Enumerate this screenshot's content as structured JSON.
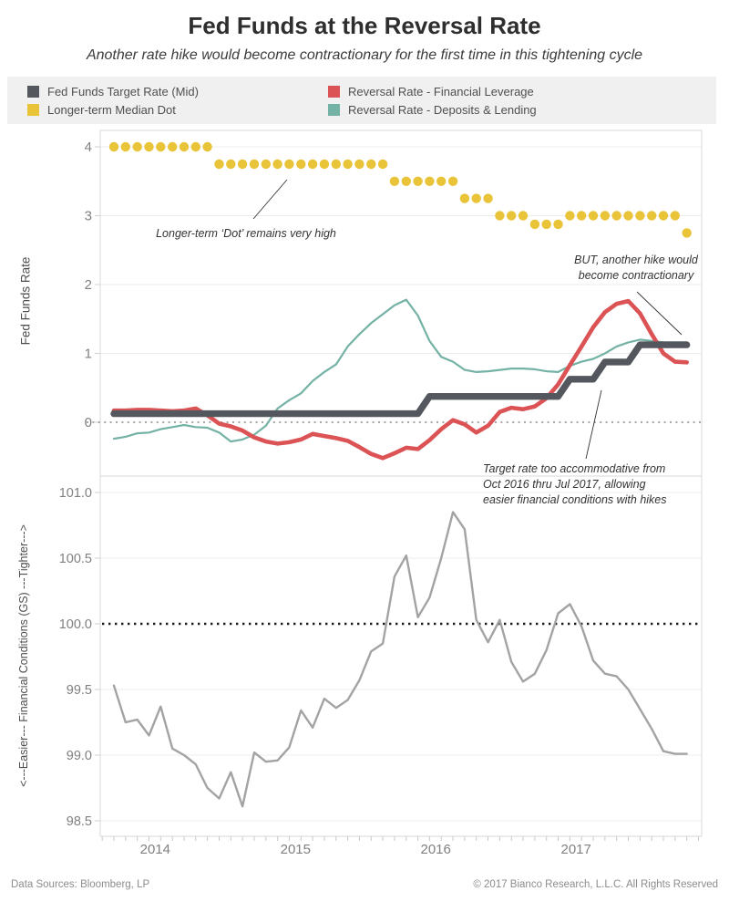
{
  "title": "Fed Funds at the Reversal Rate",
  "subtitle": "Another rate hike would become contractionary for the first time in this tightening cycle",
  "legend": {
    "items": [
      {
        "label": "Fed Funds Target Rate (Mid)",
        "color": "#54575e"
      },
      {
        "label": "Longer-term Median Dot",
        "color": "#e9c338"
      },
      {
        "label": "Reversal Rate - Financial Leverage",
        "color": "#dc5356"
      },
      {
        "label": "Reversal Rate - Deposits & Lending",
        "color": "#74b2a6"
      }
    ]
  },
  "annotations": {
    "dot_note": {
      "lines": [
        "Longer-term ‘Dot’ remains very high"
      ]
    },
    "hike_note": {
      "lines": [
        "BUT, another hike would",
        "become contractionary"
      ]
    },
    "target_note": {
      "lines": [
        "Target rate too accommodative from",
        "Oct 2016 thru Jul 2017, allowing",
        "easier financial conditions with hikes"
      ]
    }
  },
  "footer": {
    "left": "Data Sources: Bloomberg, LP",
    "right": "© 2017 Bianco Research, L.L.C. All Rights Reserved"
  },
  "chart_data": {
    "type": "line",
    "x_unit": "month",
    "x_start": "2013-09",
    "x_axis": {
      "year_ticks": [
        {
          "label": "2014",
          "month_index": 4
        },
        {
          "label": "2015",
          "month_index": 16
        },
        {
          "label": "2016",
          "month_index": 28
        },
        {
          "label": "2017",
          "month_index": 40
        }
      ]
    },
    "top_panel": {
      "ylabel": "Fed Funds Rate",
      "ylim": [
        -0.8,
        4.35
      ],
      "yticks": [
        {
          "v": 4,
          "label": "4"
        },
        {
          "v": 3,
          "label": "3"
        },
        {
          "v": 2,
          "label": "2"
        },
        {
          "v": 1,
          "label": "1"
        },
        {
          "v": 0,
          "label": "0"
        }
      ],
      "zero_reference_line": 0,
      "dots_series": {
        "name": "Longer-term Median Dot",
        "color": "#e9c338",
        "values": [
          4,
          4,
          4,
          4,
          4,
          4,
          4,
          4,
          4,
          3.75,
          3.75,
          3.75,
          3.75,
          3.75,
          3.75,
          3.75,
          3.75,
          3.75,
          3.75,
          3.75,
          3.75,
          3.75,
          3.75,
          3.75,
          3.5,
          3.5,
          3.5,
          3.5,
          3.5,
          3.5,
          3.25,
          3.25,
          3.25,
          3,
          3,
          3,
          2.875,
          2.875,
          2.875,
          3,
          3,
          3,
          3,
          3,
          3,
          3,
          3,
          3,
          3,
          2.75
        ]
      },
      "series": [
        {
          "name": "Fed Funds Target Rate (Mid)",
          "color": "#54575e",
          "width": 7.4,
          "values": [
            0.125,
            0.125,
            0.125,
            0.125,
            0.125,
            0.125,
            0.125,
            0.125,
            0.125,
            0.125,
            0.125,
            0.125,
            0.125,
            0.125,
            0.125,
            0.125,
            0.125,
            0.125,
            0.125,
            0.125,
            0.125,
            0.125,
            0.125,
            0.125,
            0.125,
            0.125,
            0.125,
            0.375,
            0.375,
            0.375,
            0.375,
            0.375,
            0.375,
            0.375,
            0.375,
            0.375,
            0.375,
            0.375,
            0.375,
            0.625,
            0.625,
            0.625,
            0.875,
            0.875,
            0.875,
            1.125,
            1.125,
            1.125,
            1.125,
            1.125
          ]
        },
        {
          "name": "Reversal Rate - Financial Leverage",
          "color": "#dc5356",
          "width": 4.6,
          "values": [
            0.17,
            0.17,
            0.18,
            0.18,
            0.17,
            0.16,
            0.17,
            0.2,
            0.1,
            -0.02,
            -0.06,
            -0.12,
            -0.22,
            -0.28,
            -0.31,
            -0.29,
            -0.25,
            -0.17,
            -0.2,
            -0.23,
            -0.27,
            -0.36,
            -0.46,
            -0.52,
            -0.45,
            -0.37,
            -0.39,
            -0.26,
            -0.1,
            0.03,
            -0.03,
            -0.15,
            -0.05,
            0.15,
            0.21,
            0.19,
            0.23,
            0.35,
            0.55,
            0.83,
            1.1,
            1.38,
            1.6,
            1.72,
            1.76,
            1.58,
            1.28,
            1.0,
            0.88,
            0.87
          ]
        },
        {
          "name": "Reversal Rate - Deposits & Lending",
          "color": "#74b2a6",
          "width": 2.2,
          "values": [
            -0.24,
            -0.21,
            -0.16,
            -0.15,
            -0.1,
            -0.07,
            -0.04,
            -0.07,
            -0.08,
            -0.15,
            -0.28,
            -0.25,
            -0.18,
            -0.05,
            0.2,
            0.32,
            0.42,
            0.6,
            0.73,
            0.84,
            1.1,
            1.28,
            1.44,
            1.57,
            1.7,
            1.78,
            1.55,
            1.18,
            0.95,
            0.88,
            0.76,
            0.73,
            0.74,
            0.76,
            0.78,
            0.78,
            0.77,
            0.74,
            0.73,
            0.82,
            0.88,
            0.92,
            1.0,
            1.1,
            1.16,
            1.2,
            1.18,
            1.16,
            1.16,
            1.16
          ]
        }
      ]
    },
    "bottom_panel": {
      "ylabel": "<---Easier--- Financial Conditions (GS) ---Tighter--->",
      "ylim": [
        98.2,
        101.1
      ],
      "yticks": [
        {
          "v": 101.0,
          "label": "101.0"
        },
        {
          "v": 100.5,
          "label": "100.5"
        },
        {
          "v": 100.0,
          "label": "100.0"
        },
        {
          "v": 99.5,
          "label": "99.5"
        },
        {
          "v": 99.0,
          "label": "99.0"
        },
        {
          "v": 98.5,
          "label": "98.5"
        }
      ],
      "reference_line": 100.0,
      "series": [
        {
          "name": "Financial Conditions (GS)",
          "color": "#a3a3a3",
          "width": 2.4,
          "values": [
            99.53,
            99.25,
            99.27,
            99.15,
            99.37,
            99.05,
            99.0,
            98.93,
            98.75,
            98.67,
            98.87,
            98.61,
            99.02,
            98.95,
            98.96,
            99.06,
            99.34,
            99.21,
            99.43,
            99.36,
            99.42,
            99.57,
            99.79,
            99.85,
            100.36,
            100.52,
            100.05,
            100.2,
            100.5,
            100.85,
            100.72,
            100.03,
            99.86,
            100.03,
            99.71,
            99.56,
            99.62,
            99.8,
            100.08,
            100.15,
            99.98,
            99.72,
            99.62,
            99.6,
            99.5,
            99.35,
            99.2,
            99.03,
            99.01,
            99.01
          ]
        }
      ]
    }
  }
}
